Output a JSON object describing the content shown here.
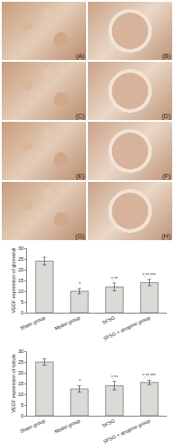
{
  "panels": [
    "(A)",
    "(B)",
    "(C)",
    "(D)",
    "(E)",
    "(F)",
    "(G)",
    "(H)"
  ],
  "chart_data": [
    {
      "type": "bar",
      "categories": [
        "Sham group",
        "Model group",
        "SFSG",
        "SFSG + atropine group"
      ],
      "values": [
        24,
        10,
        12,
        14
      ],
      "errors": [
        1.8,
        1.2,
        1.8,
        1.5
      ],
      "annotations": [
        {
          "category": "Model group",
          "text": "*"
        },
        {
          "category": "SFSG",
          "text": "*,**"
        },
        {
          "category": "SFSG + atropine group",
          "text": "*,**,***"
        }
      ],
      "ylabel": "VEGF expression of glomeruli",
      "ylim": [
        0,
        30
      ],
      "yticks": [
        0,
        5,
        10,
        15,
        20,
        25,
        30
      ],
      "color": "#dcdad6",
      "grid": false
    },
    {
      "type": "bar",
      "categories": [
        "Sham group",
        "Model group",
        "SFSG",
        "SFSG + atropine group"
      ],
      "values": [
        25,
        12.5,
        14,
        15.5
      ],
      "errors": [
        1.5,
        1.5,
        2,
        1
      ],
      "annotations": [
        {
          "category": "Model group",
          "text": "*"
        },
        {
          "category": "SFSG",
          "text": "*,**"
        },
        {
          "category": "SFSG + atropine group",
          "text": "*,**,***"
        }
      ],
      "ylabel": "VEGF expression of tubule",
      "ylim": [
        0,
        30
      ],
      "yticks": [
        0,
        5,
        10,
        15,
        20,
        25,
        30
      ],
      "color": "#dcdad6",
      "grid": false
    }
  ]
}
